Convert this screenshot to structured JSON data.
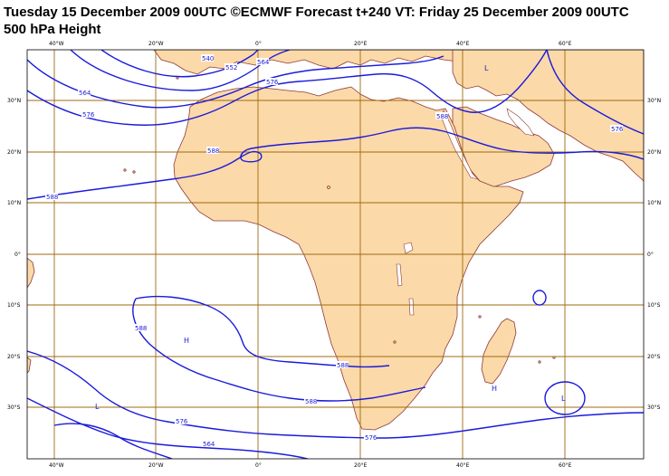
{
  "header": {
    "title_line1": "Tuesday 15 December 2009 00UTC ©ECMWF Forecast t+240 VT: Friday 25 December 2009 00UTC",
    "title_line2": "500 hPa Height"
  },
  "axes": {
    "lon_labels": [
      "40°W",
      "20°W",
      "0°",
      "20°E",
      "40°E",
      "60°E"
    ],
    "lat_labels_left": [
      "30°N",
      "20°N",
      "10°N",
      "0°",
      "10°S",
      "20°S",
      "30°S"
    ],
    "lat_labels_right": [
      "30°N",
      "20°N",
      "10°N",
      "0°",
      "10°S",
      "20°S",
      "30°S"
    ]
  },
  "contour_labels": [
    "540",
    "552",
    "564",
    "576",
    "588",
    "588",
    "564",
    "576",
    "588",
    "588",
    "588",
    "588",
    "576",
    "576",
    "564",
    "576"
  ],
  "pressure_centers": [
    {
      "label": "L",
      "kind": "low"
    },
    {
      "label": "H",
      "kind": "high"
    },
    {
      "label": "L",
      "kind": "low"
    },
    {
      "label": "H",
      "kind": "high"
    },
    {
      "label": "L",
      "kind": "low"
    }
  ],
  "colors": {
    "land": "#fcd9a8",
    "coast": "#8b3a3a",
    "grid": "#9c6b10",
    "contour": "#1a1adc"
  }
}
